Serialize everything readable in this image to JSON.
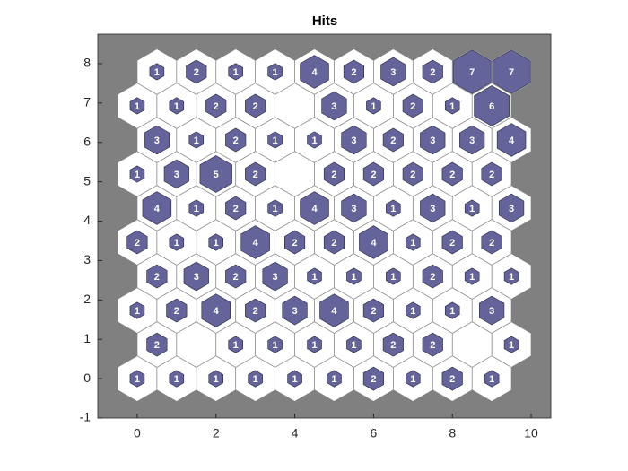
{
  "chart_data": {
    "type": "som_hits",
    "title": "Hits",
    "values": [
      [
        1,
        1,
        1,
        1,
        1,
        1,
        2,
        1,
        2,
        1
      ],
      [
        2,
        0,
        1,
        1,
        1,
        1,
        2,
        2,
        0,
        1
      ],
      [
        1,
        2,
        4,
        2,
        3,
        4,
        2,
        1,
        1,
        3
      ],
      [
        2,
        3,
        2,
        3,
        1,
        1,
        1,
        2,
        1,
        1
      ],
      [
        2,
        1,
        1,
        4,
        2,
        2,
        4,
        1,
        2,
        2
      ],
      [
        4,
        1,
        2,
        1,
        4,
        3,
        1,
        3,
        1,
        3
      ],
      [
        1,
        3,
        5,
        2,
        0,
        2,
        2,
        2,
        2,
        2
      ],
      [
        3,
        1,
        2,
        1,
        1,
        3,
        2,
        3,
        3,
        4
      ],
      [
        1,
        1,
        2,
        2,
        0,
        3,
        1,
        2,
        1,
        6
      ],
      [
        1,
        2,
        1,
        1,
        4,
        2,
        3,
        2,
        7,
        7
      ]
    ],
    "color": "#64649b",
    "background": "#808080",
    "xlim": [
      -1,
      10.5
    ],
    "xticks": [
      0,
      2,
      4,
      6,
      8,
      10
    ],
    "ylim": [
      -1,
      8.75
    ],
    "yticks": [
      -1,
      0,
      1,
      2,
      3,
      4,
      5,
      6,
      7,
      8
    ]
  }
}
